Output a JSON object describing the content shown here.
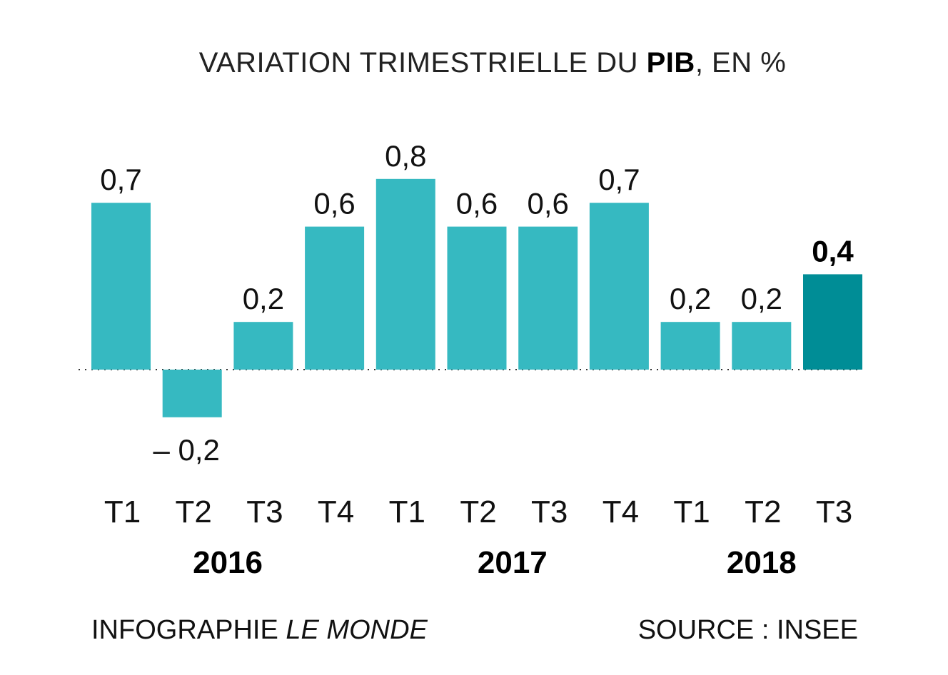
{
  "chart_data": {
    "type": "bar",
    "title_parts": [
      "VARIATION TRIMESTRIELLE DU ",
      "PIB",
      ", EN %"
    ],
    "categories": [
      "T1",
      "T2",
      "T3",
      "T4",
      "T1",
      "T2",
      "T3",
      "T4",
      "T1",
      "T2",
      "T3"
    ],
    "years": [
      {
        "label": "2016",
        "from": 0,
        "to": 3
      },
      {
        "label": "2017",
        "from": 4,
        "to": 7
      },
      {
        "label": "2018",
        "from": 8,
        "to": 10
      }
    ],
    "values": [
      0.7,
      -0.2,
      0.2,
      0.6,
      0.8,
      0.6,
      0.6,
      0.7,
      0.2,
      0.2,
      0.4
    ],
    "value_labels": [
      "0,7",
      "– 0,2",
      "0,2",
      "0,6",
      "0,8",
      "0,6",
      "0,6",
      "0,7",
      "0,2",
      "0,2",
      "0,4"
    ],
    "highlight_index": 10,
    "colors": {
      "bar": "#36b9c1",
      "highlight": "#008d96",
      "baseline": "#333333"
    },
    "baseline": "dotted zero line",
    "grid": false
  },
  "footer": {
    "credit_prefix": "INFOGRAPHIE ",
    "credit_italic": "LE MONDE",
    "source": "SOURCE : INSEE"
  }
}
